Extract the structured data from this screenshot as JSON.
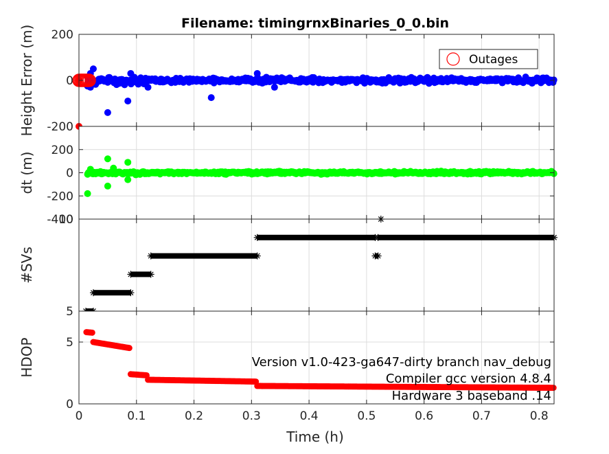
{
  "title": "Filename: timingrnxBinaries_0_0.bin",
  "xlabel": "Time (h)",
  "x_ticks": [
    "0",
    "0.1",
    "0.2",
    "0.3",
    "0.4",
    "0.5",
    "0.6",
    "0.7",
    "0.8"
  ],
  "x_tick_values": [
    0,
    0.1,
    0.2,
    0.3,
    0.4,
    0.5,
    0.6,
    0.7,
    0.8
  ],
  "xlim": [
    0,
    0.826
  ],
  "legend": {
    "label": "Outages"
  },
  "annotations": [
    "Version v1.0-423-ga647-dirty branch nav_debug",
    "Compiler gcc version 4.8.4",
    "Hardware 3 baseband .14"
  ],
  "colors": {
    "height": "#0000ff",
    "dt": "#00ff00",
    "svs": "#000000",
    "hdop": "#ff0000",
    "outage": "#ff0000"
  },
  "chart_data": [
    {
      "type": "scatter",
      "ylabel": "Height Error (m)",
      "ylim": [
        -200,
        200
      ],
      "y_ticks": [
        "200",
        "0",
        "-200"
      ],
      "y_tick_values": [
        200,
        0,
        -200
      ],
      "grid": true,
      "legend_placement": "top-right",
      "series": [
        {
          "name": "",
          "color": "#0000ff",
          "noise_amplitude": 15,
          "outliers": [
            [
              0.015,
              -25
            ],
            [
              0.02,
              30
            ],
            [
              0.025,
              50
            ],
            [
              0.05,
              -140
            ],
            [
              0.085,
              -90
            ],
            [
              0.09,
              30
            ],
            [
              0.12,
              -30
            ],
            [
              0.23,
              -75
            ],
            [
              0.31,
              30
            ],
            [
              0.34,
              -30
            ],
            [
              0.02,
              -30
            ]
          ]
        },
        {
          "name": "Outages",
          "color": "#ff0000",
          "marker": "open-circle",
          "x": [
            0.0,
            0.02
          ],
          "y": [
            0,
            0
          ]
        },
        {
          "name": "",
          "color": "#ff0000",
          "marker": "dot",
          "points": [
            [
              0.0,
              0
            ],
            [
              0.0,
              -200
            ]
          ]
        }
      ]
    },
    {
      "type": "scatter",
      "ylabel": "dt (m)",
      "ylim": [
        -400,
        400
      ],
      "y_ticks": [
        "200",
        "0",
        "-200",
        "-400"
      ],
      "y_tick_values": [
        200,
        0,
        -200,
        -400
      ],
      "grid": true,
      "series": [
        {
          "name": "",
          "color": "#00ff00",
          "noise_amplitude": 15,
          "outliers": [
            [
              0.015,
              -180
            ],
            [
              0.05,
              120
            ],
            [
              0.05,
              -115
            ],
            [
              0.085,
              90
            ],
            [
              0.085,
              -60
            ],
            [
              0.02,
              30
            ],
            [
              0.06,
              40
            ]
          ]
        }
      ]
    },
    {
      "type": "scatter",
      "ylabel": "#SVs",
      "ylim": [
        5,
        10
      ],
      "y_ticks": [
        "10",
        "5"
      ],
      "y_tick_values": [
        10,
        5
      ],
      "grid": true,
      "marker": "asterisk",
      "segments": [
        {
          "x0": 0.012,
          "x1": 0.025,
          "y": 5
        },
        {
          "x0": 0.025,
          "x1": 0.09,
          "y": 6
        },
        {
          "x0": 0.09,
          "x1": 0.125,
          "y": 7
        },
        {
          "x0": 0.125,
          "x1": 0.31,
          "y": 8
        },
        {
          "x0": 0.31,
          "x1": 0.515,
          "y": 9
        },
        {
          "x0": 0.515,
          "x1": 0.52,
          "y": 8
        },
        {
          "x0": 0.52,
          "x1": 0.826,
          "y": 9
        }
      ],
      "points": [
        [
          0.525,
          10
        ]
      ]
    },
    {
      "type": "scatter",
      "ylabel": "HDOP",
      "ylim": [
        0,
        7.5
      ],
      "y_ticks": [
        "5",
        "0"
      ],
      "y_tick_values": [
        5,
        0
      ],
      "grid": true,
      "series": [
        {
          "name": "",
          "color": "#ff0000",
          "segments": [
            {
              "x0": 0.013,
              "x1": 0.025,
              "y0": 5.8,
              "y1": 5.75
            },
            {
              "x0": 0.025,
              "x1": 0.09,
              "y0": 5.0,
              "y1": 4.5
            },
            {
              "x0": 0.09,
              "x1": 0.12,
              "y0": 2.4,
              "y1": 2.3
            },
            {
              "x0": 0.12,
              "x1": 0.31,
              "y0": 1.95,
              "y1": 1.8
            },
            {
              "x0": 0.31,
              "x1": 0.826,
              "y0": 1.45,
              "y1": 1.3
            }
          ]
        }
      ]
    }
  ]
}
